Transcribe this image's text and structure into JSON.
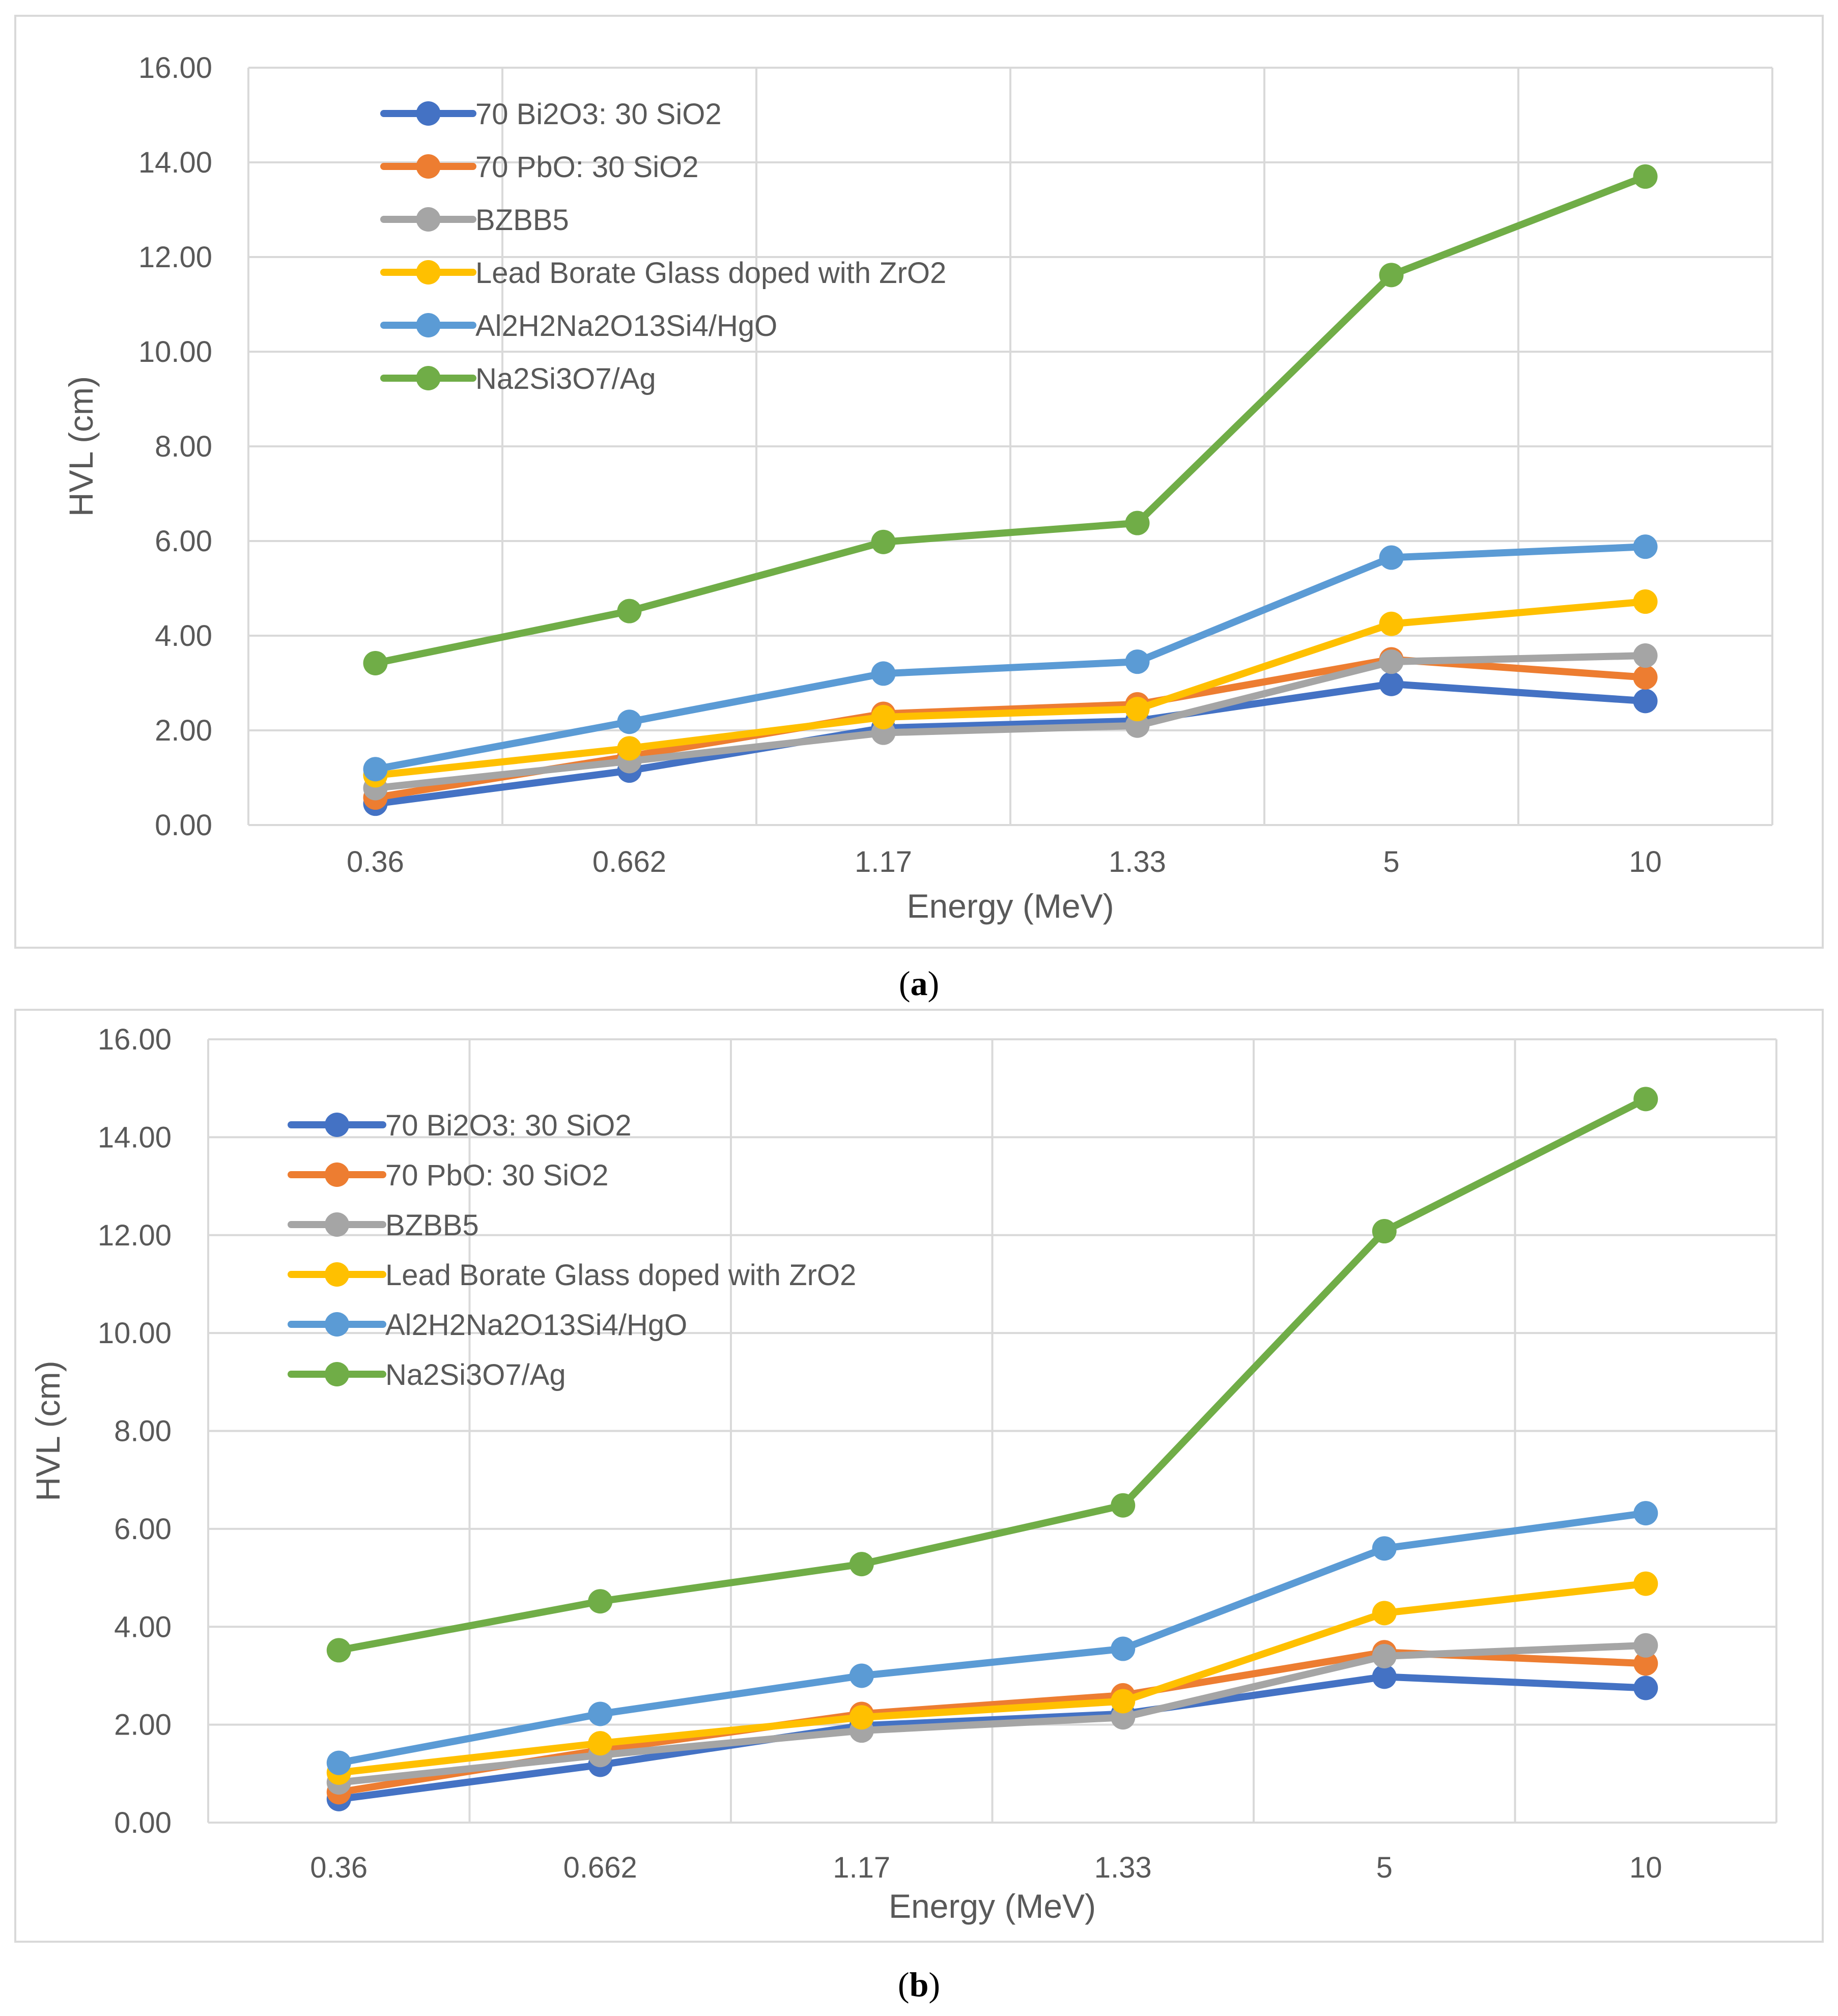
{
  "chart_data": [
    {
      "id": "a",
      "type": "line",
      "title": "",
      "xlabel": "Energy (MeV)",
      "ylabel": "HVL (cm)",
      "ylim": [
        0,
        16
      ],
      "ytick_values": [
        0,
        2,
        4,
        6,
        8,
        10,
        12,
        14,
        16
      ],
      "ytick_labels": [
        "0.00",
        "2.00",
        "4.00",
        "6.00",
        "8.00",
        "10.00",
        "12.00",
        "14.00",
        "16.00"
      ],
      "categories": [
        "0.36",
        "0.662",
        "1.17",
        "1.33",
        "5",
        "10"
      ],
      "grid": true,
      "legend_position": "top-left",
      "series": [
        {
          "name": "70 Bi2O3: 30 SiO2",
          "color": "#4472c4",
          "values": [
            0.45,
            1.15,
            2.05,
            2.2,
            2.98,
            2.62
          ]
        },
        {
          "name": "70 PbO: 30 SiO2",
          "color": "#ed7d31",
          "values": [
            0.58,
            1.45,
            2.35,
            2.55,
            3.5,
            3.12
          ]
        },
        {
          "name": "BZBB5",
          "color": "#a5a5a5",
          "values": [
            0.78,
            1.35,
            1.95,
            2.1,
            3.45,
            3.58
          ]
        },
        {
          "name": "Lead Borate Glass doped with ZrO2",
          "color": "#ffc000",
          "values": [
            1.05,
            1.62,
            2.28,
            2.45,
            4.25,
            4.72
          ]
        },
        {
          "name": "Al2H2Na2O13Si4/HgO",
          "color": "#5b9bd5",
          "values": [
            1.18,
            2.18,
            3.2,
            3.45,
            5.65,
            5.88
          ]
        },
        {
          "name": "Na2Si3O7/Ag",
          "color": "#70ad47",
          "values": [
            3.42,
            4.52,
            5.98,
            6.38,
            11.62,
            13.7
          ]
        }
      ]
    },
    {
      "id": "b",
      "type": "line",
      "title": "",
      "xlabel": "Energy (MeV)",
      "ylabel": "HVL (cm)",
      "ylim": [
        0,
        16
      ],
      "ytick_values": [
        0,
        2,
        4,
        6,
        8,
        10,
        12,
        14,
        16
      ],
      "ytick_labels": [
        "0.00",
        "2.00",
        "4.00",
        "6.00",
        "8.00",
        "10.00",
        "12.00",
        "14.00",
        "16.00"
      ],
      "categories": [
        "0.36",
        "0.662",
        "1.17",
        "1.33",
        "5",
        "10"
      ],
      "grid": true,
      "legend_position": "top-left",
      "series": [
        {
          "name": "70 Bi2O3: 30 SiO2",
          "color": "#4472c4",
          "values": [
            0.48,
            1.18,
            1.98,
            2.22,
            2.98,
            2.75
          ]
        },
        {
          "name": "70 PbO: 30 SiO2",
          "color": "#ed7d31",
          "values": [
            0.62,
            1.48,
            2.22,
            2.6,
            3.48,
            3.25
          ]
        },
        {
          "name": "BZBB5",
          "color": "#a5a5a5",
          "values": [
            0.82,
            1.38,
            1.88,
            2.15,
            3.4,
            3.62
          ]
        },
        {
          "name": "Lead Borate Glass doped with ZrO2",
          "color": "#ffc000",
          "values": [
            1.02,
            1.62,
            2.15,
            2.48,
            4.28,
            4.88
          ]
        },
        {
          "name": "Al2H2Na2O13Si4/HgO",
          "color": "#5b9bd5",
          "values": [
            1.22,
            2.22,
            3.0,
            3.55,
            5.6,
            6.32
          ]
        },
        {
          "name": "Na2Si3O7/Ag",
          "color": "#70ad47",
          "values": [
            3.52,
            4.52,
            5.28,
            6.48,
            12.08,
            14.78
          ]
        }
      ]
    }
  ],
  "captions": {
    "a": {
      "open": "(",
      "letter": "a",
      "close": ")"
    },
    "b": {
      "open": "(",
      "letter": "b",
      "close": ")"
    }
  }
}
